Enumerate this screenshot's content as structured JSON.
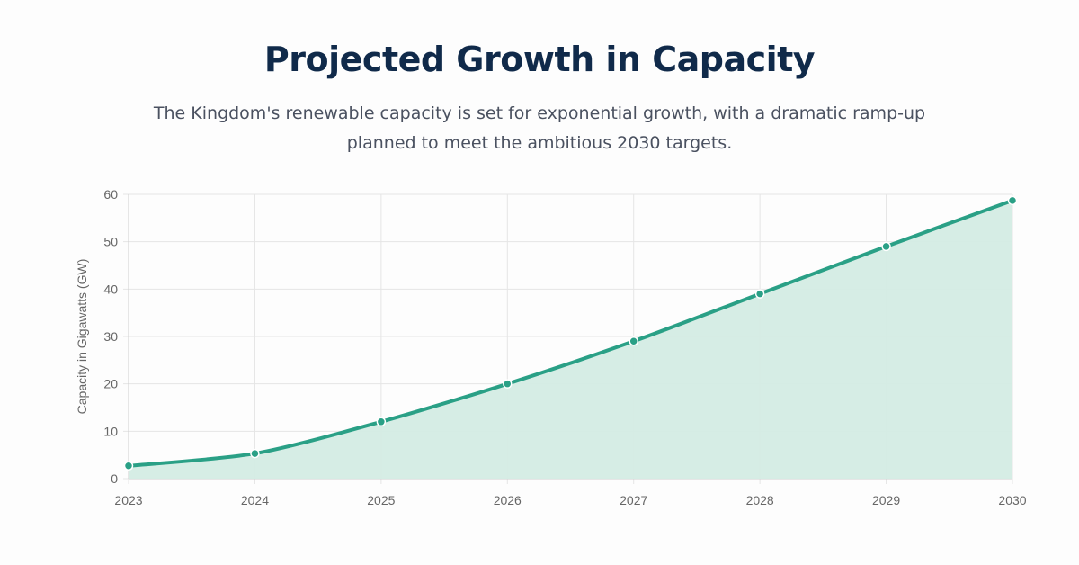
{
  "header": {
    "title": "Projected Growth in Capacity",
    "subtitle": "The Kingdom's renewable capacity is set for exponential growth, with a dramatic ramp-up planned to meet the ambitious 2030 targets."
  },
  "colors": {
    "line": "#2aa086",
    "fill": "#d4ece4",
    "grid": "#e5e5e5",
    "title": "#102a4a"
  },
  "chart_data": {
    "type": "area",
    "title": "Projected Growth in Capacity",
    "xlabel": "",
    "ylabel": "Capacity in Gigawatts (GW)",
    "categories": [
      "2023",
      "2024",
      "2025",
      "2026",
      "2027",
      "2028",
      "2029",
      "2030"
    ],
    "series": [
      {
        "name": "Capacity (GW)",
        "values": [
          2.7,
          5.3,
          12,
          20,
          29,
          39,
          49,
          58.7
        ]
      }
    ],
    "ylim": [
      0,
      60
    ],
    "yticks": [
      0,
      10,
      20,
      30,
      40,
      50,
      60
    ],
    "grid": true,
    "legend": "none"
  }
}
